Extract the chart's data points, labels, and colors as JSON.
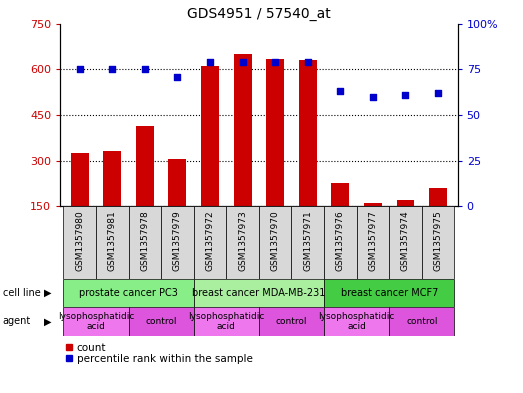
{
  "title": "GDS4951 / 57540_at",
  "samples": [
    "GSM1357980",
    "GSM1357981",
    "GSM1357978",
    "GSM1357979",
    "GSM1357972",
    "GSM1357973",
    "GSM1357970",
    "GSM1357971",
    "GSM1357976",
    "GSM1357977",
    "GSM1357974",
    "GSM1357975"
  ],
  "counts": [
    325,
    333,
    415,
    305,
    612,
    650,
    635,
    630,
    225,
    160,
    170,
    210
  ],
  "percentiles": [
    75,
    75,
    75,
    71,
    79,
    79,
    79,
    79,
    63,
    60,
    61,
    62
  ],
  "bar_color": "#cc0000",
  "dot_color": "#0000cc",
  "ylim_left": [
    150,
    750
  ],
  "ylim_right": [
    0,
    100
  ],
  "yticks_left": [
    150,
    300,
    450,
    600,
    750
  ],
  "yticks_right": [
    0,
    25,
    50,
    75,
    100
  ],
  "cell_lines": [
    {
      "label": "prostate cancer PC3",
      "start": 0,
      "end": 4,
      "color": "#88ee88"
    },
    {
      "label": "breast cancer MDA-MB-231",
      "start": 4,
      "end": 8,
      "color": "#aaeea a"
    },
    {
      "label": "breast cancer MCF7",
      "start": 8,
      "end": 12,
      "color": "#44cc44"
    }
  ],
  "agents": [
    {
      "label": "lysophosphatidic\nacid",
      "start": 0,
      "end": 2,
      "color": "#ee77ee"
    },
    {
      "label": "control",
      "start": 2,
      "end": 4,
      "color": "#dd55dd"
    },
    {
      "label": "lysophosphatidic\nacid",
      "start": 4,
      "end": 6,
      "color": "#ee77ee"
    },
    {
      "label": "control",
      "start": 6,
      "end": 8,
      "color": "#dd55dd"
    },
    {
      "label": "lysophosphatidic\nacid",
      "start": 8,
      "end": 10,
      "color": "#ee77ee"
    },
    {
      "label": "control",
      "start": 10,
      "end": 12,
      "color": "#dd55dd"
    }
  ],
  "cell_line_row_label": "cell line",
  "agent_row_label": "agent",
  "legend_count_label": "count",
  "legend_pct_label": "percentile rank within the sample",
  "background_color": "#ffffff",
  "tick_area_color": "#d8d8d8"
}
